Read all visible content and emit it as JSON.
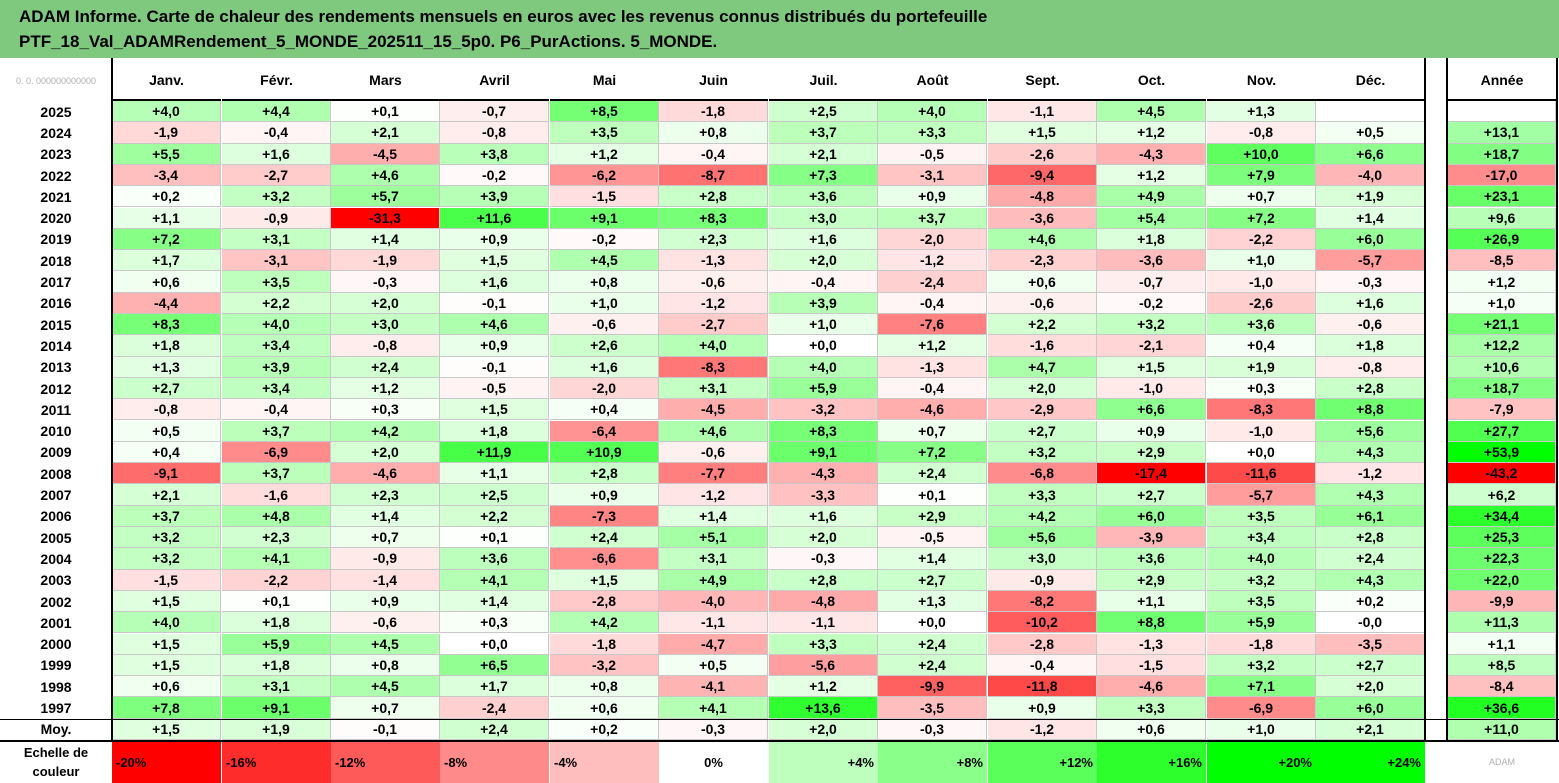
{
  "title": {
    "line1": "ADAM Informe. Carte de chaleur des rendements mensuels en euros avec les revenus connus distribués du portefeuille",
    "line2": "PTF_18_Val_ADAMRendement_5_MONDE_202511_15_5p0. P6_PurActions. 5_MONDE."
  },
  "corner_text": "0. 0. 000000000000",
  "logo_text": "ADAM",
  "colors": {
    "neg_max": "#ff0000",
    "neutral": "#ffffff",
    "pos_max": "#00ff00",
    "title_bg": "#7fc97f"
  },
  "chart_data": {
    "type": "heatmap",
    "months": [
      "Janv.",
      "Févr.",
      "Mars",
      "Avril",
      "Mai",
      "Juin",
      "Juil.",
      "Août",
      "Sept.",
      "Oct.",
      "Nov.",
      "Déc."
    ],
    "annual_label": "Année",
    "rows": [
      {
        "year": "2025",
        "values": [
          "+4,0",
          "+4,4",
          "+0,1",
          "-0,7",
          "+8,5",
          "-1,8",
          "+2,5",
          "+4,0",
          "-1,1",
          "+4,5",
          "+1,3",
          ""
        ],
        "annual": ""
      },
      {
        "year": "2024",
        "values": [
          "-1,9",
          "-0,4",
          "+2,1",
          "-0,8",
          "+3,5",
          "+0,8",
          "+3,7",
          "+3,3",
          "+1,5",
          "+1,2",
          "-0,8",
          "+0,5"
        ],
        "annual": "+13,1"
      },
      {
        "year": "2023",
        "values": [
          "+5,5",
          "+1,6",
          "-4,5",
          "+3,8",
          "+1,2",
          "-0,4",
          "+2,1",
          "-0,5",
          "-2,6",
          "-4,3",
          "+10,0",
          "+6,6"
        ],
        "annual": "+18,7"
      },
      {
        "year": "2022",
        "values": [
          "-3,4",
          "-2,7",
          "+4,6",
          "-0,2",
          "-6,2",
          "-8,7",
          "+7,3",
          "-3,1",
          "-9,4",
          "+1,2",
          "+7,9",
          "-4,0"
        ],
        "annual": "-17,0"
      },
      {
        "year": "2021",
        "values": [
          "+0,2",
          "+3,2",
          "+5,7",
          "+3,9",
          "-1,5",
          "+2,8",
          "+3,6",
          "+0,9",
          "-4,8",
          "+4,9",
          "+0,7",
          "+1,9"
        ],
        "annual": "+23,1"
      },
      {
        "year": "2020",
        "values": [
          "+1,1",
          "-0,9",
          "-31,3",
          "+11,6",
          "+9,1",
          "+8,3",
          "+3,0",
          "+3,7",
          "-3,6",
          "+5,4",
          "+7,2",
          "+1,4"
        ],
        "annual": "+9,6"
      },
      {
        "year": "2019",
        "values": [
          "+7,2",
          "+3,1",
          "+1,4",
          "+0,9",
          "-0,2",
          "+2,3",
          "+1,6",
          "-2,0",
          "+4,6",
          "+1,8",
          "-2,2",
          "+6,0"
        ],
        "annual": "+26,9"
      },
      {
        "year": "2018",
        "values": [
          "+1,7",
          "-3,1",
          "-1,9",
          "+1,5",
          "+4,5",
          "-1,3",
          "+2,0",
          "-1,2",
          "-2,3",
          "-3,6",
          "+1,0",
          "-5,7"
        ],
        "annual": "-8,5"
      },
      {
        "year": "2017",
        "values": [
          "+0,6",
          "+3,5",
          "-0,3",
          "+1,6",
          "+0,8",
          "-0,6",
          "-0,4",
          "-2,4",
          "+0,6",
          "-0,7",
          "-1,0",
          "-0,3"
        ],
        "annual": "+1,2"
      },
      {
        "year": "2016",
        "values": [
          "-4,4",
          "+2,2",
          "+2,0",
          "-0,1",
          "+1,0",
          "-1,2",
          "+3,9",
          "-0,4",
          "-0,6",
          "-0,2",
          "-2,6",
          "+1,6"
        ],
        "annual": "+1,0"
      },
      {
        "year": "2015",
        "values": [
          "+8,3",
          "+4,0",
          "+3,0",
          "+4,6",
          "-0,6",
          "-2,7",
          "+1,0",
          "-7,6",
          "+2,2",
          "+3,2",
          "+3,6",
          "-0,6"
        ],
        "annual": "+21,1"
      },
      {
        "year": "2014",
        "values": [
          "+1,8",
          "+3,4",
          "-0,8",
          "+0,9",
          "+2,6",
          "+4,0",
          "+0,0",
          "+1,2",
          "-1,6",
          "-2,1",
          "+0,4",
          "+1,8"
        ],
        "annual": "+12,2"
      },
      {
        "year": "2013",
        "values": [
          "+1,3",
          "+3,9",
          "+2,4",
          "-0,1",
          "+1,6",
          "-8,3",
          "+4,0",
          "-1,3",
          "+4,7",
          "+1,5",
          "+1,9",
          "-0,8"
        ],
        "annual": "+10,6"
      },
      {
        "year": "2012",
        "values": [
          "+2,7",
          "+3,4",
          "+1,2",
          "-0,5",
          "-2,0",
          "+3,1",
          "+5,9",
          "-0,4",
          "+2,0",
          "-1,0",
          "+0,3",
          "+2,8"
        ],
        "annual": "+18,7"
      },
      {
        "year": "2011",
        "values": [
          "-0,8",
          "-0,4",
          "+0,3",
          "+1,5",
          "+0,4",
          "-4,5",
          "-3,2",
          "-4,6",
          "-2,9",
          "+6,6",
          "-8,3",
          "+8,8"
        ],
        "annual": "-7,9"
      },
      {
        "year": "2010",
        "values": [
          "+0,5",
          "+3,7",
          "+4,2",
          "+1,8",
          "-6,4",
          "+4,6",
          "+8,3",
          "+0,7",
          "+2,7",
          "+0,9",
          "-1,0",
          "+5,6"
        ],
        "annual": "+27,7"
      },
      {
        "year": "2009",
        "values": [
          "+0,4",
          "-6,9",
          "+2,0",
          "+11,9",
          "+10,9",
          "-0,6",
          "+9,1",
          "+7,2",
          "+3,2",
          "+2,9",
          "+0,0",
          "+4,3"
        ],
        "annual": "+53,9"
      },
      {
        "year": "2008",
        "values": [
          "-9,1",
          "+3,7",
          "-4,6",
          "+1,1",
          "+2,8",
          "-7,7",
          "-4,3",
          "+2,4",
          "-6,8",
          "-17,4",
          "-11,6",
          "-1,2"
        ],
        "annual": "-43,2"
      },
      {
        "year": "2007",
        "values": [
          "+2,1",
          "-1,6",
          "+2,3",
          "+2,5",
          "+0,9",
          "-1,2",
          "-3,3",
          "+0,1",
          "+3,3",
          "+2,7",
          "-5,7",
          "+4,3"
        ],
        "annual": "+6,2"
      },
      {
        "year": "2006",
        "values": [
          "+3,7",
          "+4,8",
          "+1,4",
          "+2,2",
          "-7,3",
          "+1,4",
          "+1,6",
          "+2,9",
          "+4,2",
          "+6,0",
          "+3,5",
          "+6,1"
        ],
        "annual": "+34,4"
      },
      {
        "year": "2005",
        "values": [
          "+3,2",
          "+2,3",
          "+0,7",
          "+0,1",
          "+2,4",
          "+5,1",
          "+2,0",
          "-0,5",
          "+5,6",
          "-3,9",
          "+3,4",
          "+2,8"
        ],
        "annual": "+25,3"
      },
      {
        "year": "2004",
        "values": [
          "+3,2",
          "+4,1",
          "-0,9",
          "+3,6",
          "-6,6",
          "+3,1",
          "-0,3",
          "+1,4",
          "+3,0",
          "+3,6",
          "+4,0",
          "+2,4"
        ],
        "annual": "+22,3"
      },
      {
        "year": "2003",
        "values": [
          "-1,5",
          "-2,2",
          "-1,4",
          "+4,1",
          "+1,5",
          "+4,9",
          "+2,8",
          "+2,7",
          "-0,9",
          "+2,9",
          "+3,2",
          "+4,3"
        ],
        "annual": "+22,0"
      },
      {
        "year": "2002",
        "values": [
          "+1,5",
          "+0,1",
          "+0,9",
          "+1,4",
          "-2,8",
          "-4,0",
          "-4,8",
          "+1,3",
          "-8,2",
          "+1,1",
          "+3,5",
          "+0,2"
        ],
        "annual": "-9,9"
      },
      {
        "year": "2001",
        "values": [
          "+4,0",
          "+1,8",
          "-0,6",
          "+0,3",
          "+4,2",
          "-1,1",
          "-1,1",
          "+0,0",
          "-10,2",
          "+8,8",
          "+5,9",
          "-0,0"
        ],
        "annual": "+11,3"
      },
      {
        "year": "2000",
        "values": [
          "+1,5",
          "+5,9",
          "+4,5",
          "+0,0",
          "-1,8",
          "-4,7",
          "+3,3",
          "+2,4",
          "-2,8",
          "-1,3",
          "-1,8",
          "-3,5"
        ],
        "annual": "+1,1"
      },
      {
        "year": "1999",
        "values": [
          "+1,5",
          "+1,8",
          "+0,8",
          "+6,5",
          "-3,2",
          "+0,5",
          "-5,6",
          "+2,4",
          "-0,4",
          "-1,5",
          "+3,2",
          "+2,7"
        ],
        "annual": "+8,5"
      },
      {
        "year": "1998",
        "values": [
          "+0,6",
          "+3,1",
          "+4,5",
          "+1,7",
          "+0,8",
          "-4,1",
          "+1,2",
          "-9,9",
          "-11,8",
          "-4,6",
          "+7,1",
          "+2,0"
        ],
        "annual": "-8,4"
      },
      {
        "year": "1997",
        "values": [
          "+7,8",
          "+9,1",
          "+0,7",
          "-2,4",
          "+0,6",
          "+4,1",
          "+13,6",
          "-3,5",
          "+0,9",
          "+3,3",
          "-6,9",
          "+6,0"
        ],
        "annual": "+36,6"
      }
    ],
    "average": {
      "label": "Moy.",
      "values": [
        "+1,5",
        "+1,9",
        "-0,1",
        "+2,4",
        "+0,2",
        "-0,3",
        "+2,0",
        "-0,3",
        "-1,2",
        "+0,6",
        "+1,0",
        "+2,1"
      ],
      "annual": "+11,0"
    },
    "scale": {
      "label_line1": "Echelle de",
      "label_line2": "couleur",
      "stops": [
        "-20%",
        "-16%",
        "-12%",
        "-8%",
        "-4%",
        "0%",
        "+4%",
        "+8%",
        "+12%",
        "+16%",
        "+20%",
        "+24%"
      ]
    }
  }
}
